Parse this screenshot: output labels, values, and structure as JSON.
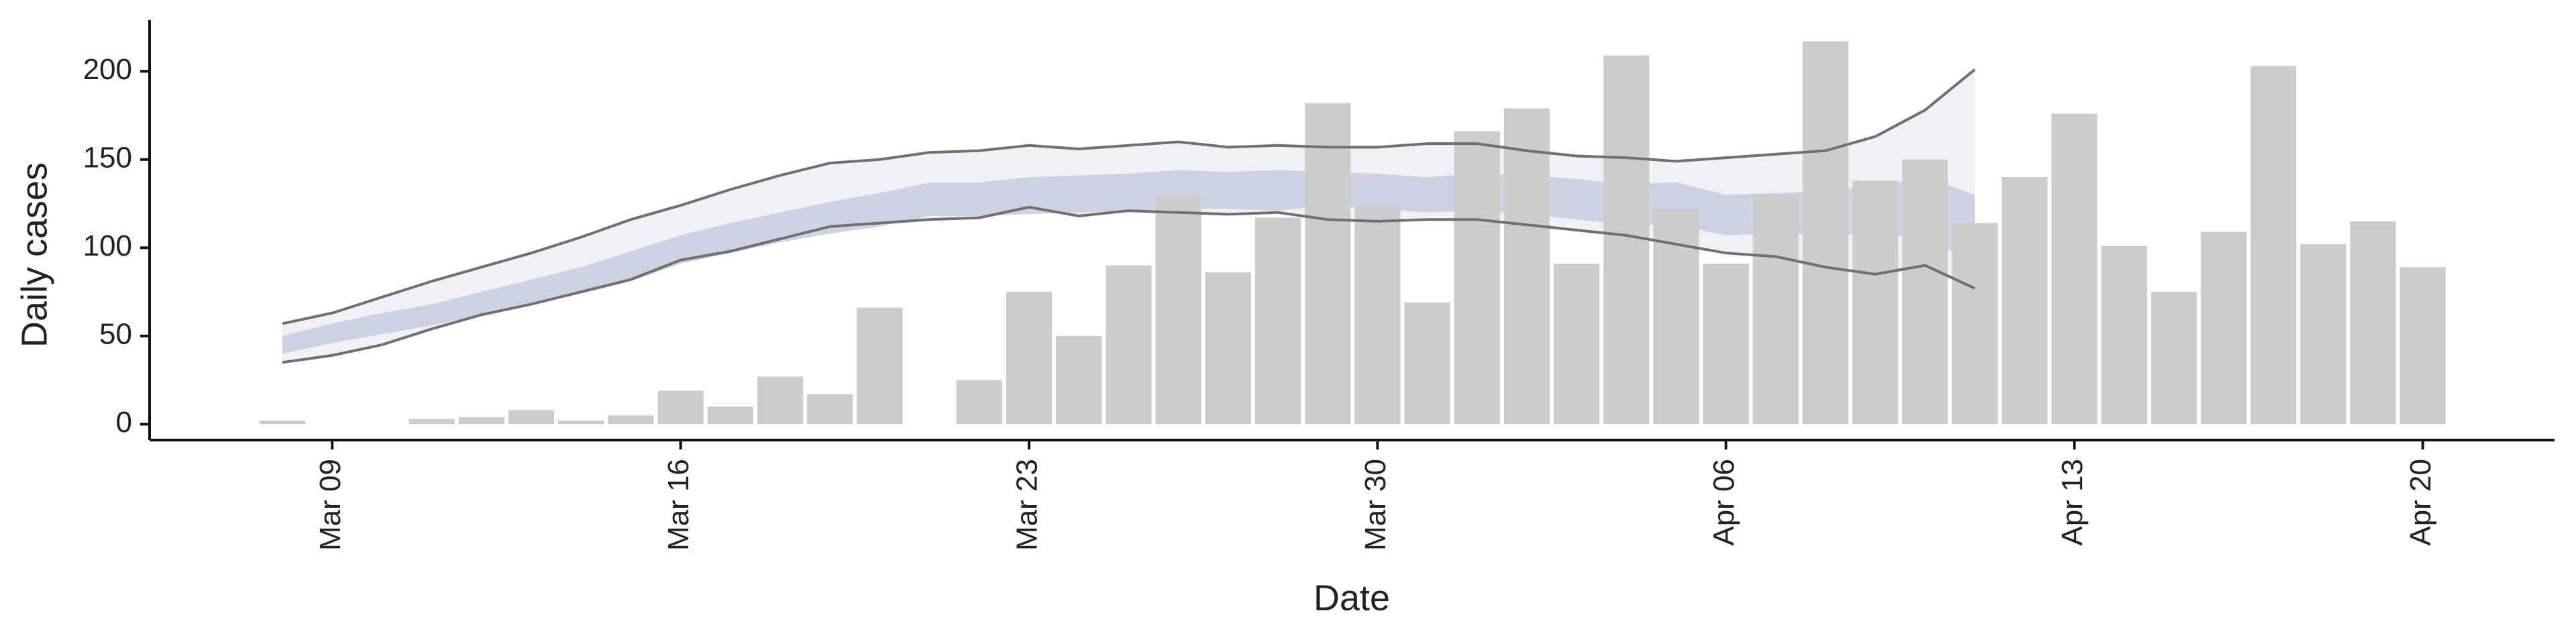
{
  "chart_data": {
    "type": "bar",
    "xlabel": "Date",
    "ylabel": "Daily cases",
    "categories": [
      null,
      "Mar 09",
      null,
      null,
      null,
      null,
      null,
      null,
      "Mar 16",
      null,
      null,
      null,
      null,
      null,
      null,
      "Mar 23",
      null,
      null,
      null,
      null,
      null,
      null,
      "Mar 30",
      null,
      null,
      null,
      null,
      null,
      null,
      "Apr 06",
      null,
      null,
      null,
      null,
      null,
      null,
      "Apr 13",
      null,
      null,
      null,
      null,
      null,
      null,
      "Apr 20"
    ],
    "values": [
      2,
      0,
      0,
      3,
      4,
      8,
      2,
      5,
      19,
      10,
      27,
      17,
      66,
      0,
      25,
      75,
      50,
      90,
      130,
      86,
      117,
      182,
      124,
      69,
      166,
      179,
      91,
      209,
      122,
      91,
      130,
      217,
      138,
      150,
      114,
      140,
      176,
      101,
      75,
      109,
      203,
      102,
      115,
      89
    ],
    "color": "#cccccc",
    "ylim": [
      -9,
      229
    ],
    "yticks": [
      0,
      50,
      100,
      150,
      200
    ],
    "bands": [
      {
        "color": "#eceef5",
        "upper": [
          57,
          63,
          72,
          81,
          89,
          97,
          106,
          116,
          124,
          133,
          141,
          148,
          150,
          154,
          155,
          158,
          156,
          158,
          160,
          157,
          158,
          157,
          157,
          159,
          159,
          155,
          152,
          151,
          149,
          151,
          153,
          155,
          163,
          178,
          201,
          null,
          null,
          null,
          null,
          null,
          null,
          null,
          null,
          null
        ],
        "lower": [
          35,
          39,
          45,
          54,
          62,
          68,
          75,
          82,
          93,
          98,
          105,
          112,
          114,
          116,
          117,
          123,
          118,
          121,
          120,
          119,
          120,
          116,
          115,
          116,
          116,
          113,
          110,
          107,
          102,
          97,
          95,
          89,
          85,
          90,
          77,
          null,
          null,
          null,
          null,
          null,
          null,
          null,
          null,
          null
        ]
      },
      {
        "color": "#c5ccde",
        "upper": [
          50,
          57,
          63,
          68,
          75,
          82,
          89,
          98,
          107,
          114,
          120,
          126,
          131,
          137,
          137,
          140,
          141,
          142,
          144,
          143,
          144,
          143,
          142,
          140,
          142,
          141,
          139,
          136,
          137,
          130,
          131,
          132,
          135,
          140,
          130,
          null,
          null,
          null,
          null,
          null,
          null,
          null,
          null,
          null
        ],
        "lower": [
          40,
          46,
          51,
          56,
          62,
          68,
          74,
          81,
          91,
          97,
          103,
          108,
          112,
          118,
          118,
          119,
          120,
          121,
          122,
          122,
          121,
          124,
          122,
          120,
          121,
          119,
          116,
          113,
          113,
          107,
          108,
          107,
          108,
          105,
          92,
          null,
          null,
          null,
          null,
          null,
          null,
          null,
          null,
          null
        ]
      }
    ],
    "lines": [
      {
        "color": "#707070",
        "values": [
          57,
          63,
          72,
          81,
          89,
          97,
          106,
          116,
          124,
          133,
          141,
          148,
          150,
          154,
          155,
          158,
          156,
          158,
          160,
          157,
          158,
          157,
          157,
          159,
          159,
          155,
          152,
          151,
          149,
          151,
          153,
          155,
          163,
          178,
          201,
          null,
          null,
          null,
          null,
          null,
          null,
          null,
          null,
          null
        ]
      },
      {
        "color": "#707070",
        "values": [
          35,
          39,
          45,
          54,
          62,
          68,
          75,
          82,
          93,
          98,
          105,
          112,
          114,
          116,
          117,
          123,
          118,
          121,
          120,
          119,
          120,
          116,
          115,
          116,
          116,
          113,
          110,
          107,
          102,
          97,
          95,
          89,
          85,
          90,
          77,
          null,
          null,
          null,
          null,
          null,
          null,
          null,
          null,
          null
        ]
      }
    ]
  }
}
